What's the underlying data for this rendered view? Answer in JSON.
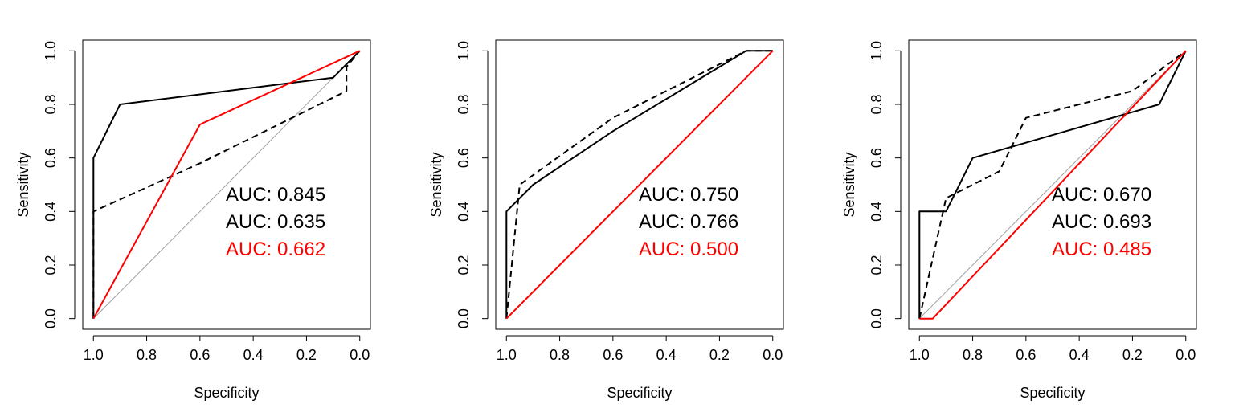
{
  "chart_data": [
    {
      "type": "line",
      "xlabel": "Specificity",
      "ylabel": "Sensitivity",
      "xlim": [
        1.04,
        -0.04
      ],
      "ylim": [
        -0.04,
        1.04
      ],
      "xticks": [
        "1.0",
        "0.8",
        "0.6",
        "0.4",
        "0.2",
        "0.0"
      ],
      "yticks": [
        "0.0",
        "0.2",
        "0.4",
        "0.6",
        "0.8",
        "1.0"
      ],
      "reference_line": "diagonal",
      "series": [
        {
          "style": "solid",
          "color": "#000000",
          "x": [
            1.0,
            1.0,
            0.9,
            0.1,
            0.0
          ],
          "y": [
            0.0,
            0.6,
            0.8,
            0.9,
            1.0
          ]
        },
        {
          "style": "dashed",
          "color": "#000000",
          "x": [
            1.0,
            1.0,
            0.6,
            0.05,
            0.05,
            0.0
          ],
          "y": [
            0.0,
            0.4,
            0.58,
            0.85,
            0.94,
            1.0
          ]
        },
        {
          "style": "solid",
          "color": "#ff0000",
          "x": [
            1.0,
            0.6,
            0.0
          ],
          "y": [
            0.0,
            0.725,
            1.0
          ]
        }
      ],
      "annotations": [
        {
          "text": "AUC: 0.845",
          "color": "#000000"
        },
        {
          "text": "AUC: 0.635",
          "color": "#000000"
        },
        {
          "text": "AUC: 0.662",
          "color": "#ff0000"
        }
      ]
    },
    {
      "type": "line",
      "xlabel": "Specificity",
      "ylabel": "Sensitivity",
      "xlim": [
        1.04,
        -0.04
      ],
      "ylim": [
        -0.04,
        1.04
      ],
      "xticks": [
        "1.0",
        "0.8",
        "0.6",
        "0.4",
        "0.2",
        "0.0"
      ],
      "yticks": [
        "0.0",
        "0.2",
        "0.4",
        "0.6",
        "0.8",
        "1.0"
      ],
      "reference_line": "diagonal",
      "series": [
        {
          "style": "solid",
          "color": "#000000",
          "x": [
            1.0,
            1.0,
            0.9,
            0.6,
            0.1,
            0.0
          ],
          "y": [
            0.0,
            0.4,
            0.5,
            0.7,
            1.0,
            1.0
          ]
        },
        {
          "style": "dashed",
          "color": "#000000",
          "x": [
            1.0,
            0.95,
            0.6,
            0.2,
            0.1,
            0.0
          ],
          "y": [
            0.0,
            0.5,
            0.75,
            0.95,
            1.0,
            1.0
          ]
        },
        {
          "style": "solid",
          "color": "#ff0000",
          "x": [
            1.0,
            0.0
          ],
          "y": [
            0.0,
            1.0
          ]
        }
      ],
      "annotations": [
        {
          "text": "AUC: 0.750",
          "color": "#000000"
        },
        {
          "text": "AUC: 0.766",
          "color": "#000000"
        },
        {
          "text": "AUC: 0.500",
          "color": "#ff0000"
        }
      ]
    },
    {
      "type": "line",
      "xlabel": "Specificity",
      "ylabel": "Sensitivity",
      "xlim": [
        1.04,
        -0.04
      ],
      "ylim": [
        -0.04,
        1.04
      ],
      "xticks": [
        "1.0",
        "0.8",
        "0.6",
        "0.4",
        "0.2",
        "0.0"
      ],
      "yticks": [
        "0.0",
        "0.2",
        "0.4",
        "0.6",
        "0.8",
        "1.0"
      ],
      "reference_line": "diagonal",
      "series": [
        {
          "style": "solid",
          "color": "#000000",
          "x": [
            1.0,
            1.0,
            0.9,
            0.8,
            0.1,
            0.0
          ],
          "y": [
            0.0,
            0.4,
            0.4,
            0.6,
            0.8,
            1.0
          ]
        },
        {
          "style": "dashed",
          "color": "#000000",
          "x": [
            1.0,
            0.9,
            0.7,
            0.6,
            0.2,
            0.0
          ],
          "y": [
            0.0,
            0.45,
            0.55,
            0.75,
            0.85,
            1.0
          ]
        },
        {
          "style": "solid",
          "color": "#ff0000",
          "x": [
            1.0,
            0.95,
            0.0
          ],
          "y": [
            0.0,
            0.0,
            1.0
          ]
        }
      ],
      "annotations": [
        {
          "text": "AUC: 0.670",
          "color": "#000000"
        },
        {
          "text": "AUC: 0.693",
          "color": "#000000"
        },
        {
          "text": "AUC: 0.485",
          "color": "#ff0000"
        }
      ]
    }
  ]
}
